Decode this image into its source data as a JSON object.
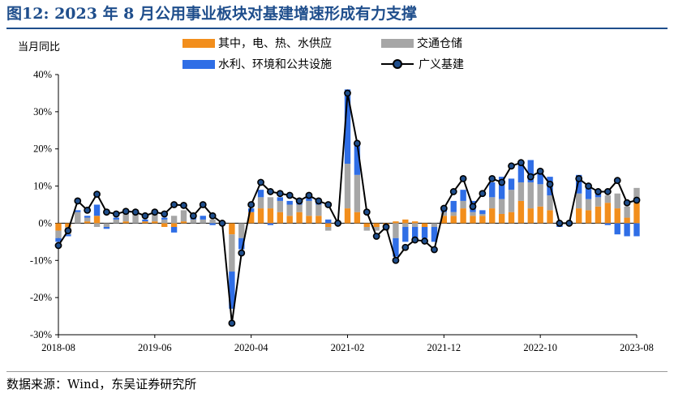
{
  "header": {
    "title": "图12:  2023 年 8 月公用事业板块对基建增速形成有力支撑"
  },
  "footer": {
    "source": "数据来源：Wind，东吴证券研究所"
  },
  "colors": {
    "utility": "#f28e1c",
    "transport": "#a6a6a6",
    "water": "#2f6ee6",
    "line": "#000000",
    "marker": "#1f4e8c"
  },
  "chart_data": {
    "type": "bar",
    "stacked": true,
    "ylabel": "当月同比",
    "ylim": [
      -30,
      40
    ],
    "yticks": [
      "40%",
      "30%",
      "20%",
      "10%",
      "0%",
      "-10%",
      "-20%",
      "-30%"
    ],
    "xticks": [
      "2018-08",
      "2019-06",
      "2020-04",
      "2021-02",
      "2021-12",
      "2022-10",
      "2023-08"
    ],
    "legend_position": "top",
    "legend": [
      "其中，电、热、水供应",
      "交通仓储",
      "水利、环境和公共设施",
      "广义基建"
    ],
    "x": [
      "2018-08",
      "2018-09",
      "2018-10",
      "2018-11",
      "2018-12",
      "2019-01",
      "2019-02",
      "2019-03",
      "2019-04",
      "2019-05",
      "2019-06",
      "2019-07",
      "2019-08",
      "2019-09",
      "2019-10",
      "2019-11",
      "2019-12",
      "2020-01",
      "2020-02",
      "2020-03",
      "2020-04",
      "2020-05",
      "2020-06",
      "2020-07",
      "2020-08",
      "2020-09",
      "2020-10",
      "2020-11",
      "2020-12",
      "2021-01",
      "2021-02",
      "2021-03",
      "2021-04",
      "2021-05",
      "2021-06",
      "2021-07",
      "2021-08",
      "2021-09",
      "2021-10",
      "2021-11",
      "2021-12",
      "2022-01",
      "2022-02",
      "2022-03",
      "2022-04",
      "2022-05",
      "2022-06",
      "2022-07",
      "2022-08",
      "2022-09",
      "2022-10",
      "2022-11",
      "2022-12",
      "2023-01",
      "2023-02",
      "2023-03",
      "2023-04",
      "2023-05",
      "2023-06",
      "2023-07",
      "2023-08"
    ],
    "series": [
      {
        "name": "其中，电、热、水供应",
        "kind": "bar",
        "values": [
          -2,
          -1,
          0,
          0.5,
          2,
          0,
          0,
          0.5,
          0,
          0.5,
          0.5,
          -1,
          -1,
          0.5,
          0,
          0,
          0,
          0,
          -3,
          0,
          3,
          4,
          4,
          3,
          2,
          3,
          2,
          2,
          -1,
          0,
          4,
          3,
          -1,
          -1,
          -1,
          0.5,
          1,
          0.5,
          -1,
          0,
          2,
          2,
          4,
          2,
          2,
          4,
          2.5,
          3,
          6,
          4,
          4.5,
          3.5,
          0,
          0,
          4,
          3.5,
          4.5,
          5.5,
          4,
          1.5,
          5.5
        ]
      },
      {
        "name": "交通仓储",
        "kind": "bar",
        "values": [
          -2,
          -2,
          3,
          1,
          -1,
          -1,
          1,
          2,
          3,
          0,
          2,
          1,
          2,
          3,
          1,
          1,
          1,
          0,
          -10,
          -4,
          0,
          3,
          3,
          3,
          3,
          2,
          4,
          3,
          -1,
          0,
          12,
          10,
          -1,
          -1,
          -1,
          -4,
          -1,
          -1,
          0,
          -1,
          1,
          1,
          2,
          1,
          0.5,
          3,
          4,
          6,
          5,
          7,
          6,
          4,
          0,
          0,
          4,
          3,
          2.5,
          2,
          4,
          3,
          4
        ]
      },
      {
        "name": "水利、环境和公共设施",
        "kind": "bar",
        "values": [
          -1,
          -0.5,
          0.5,
          0.5,
          3,
          -0.5,
          0.5,
          0.5,
          0,
          0.5,
          1,
          0.5,
          -1.5,
          0,
          1,
          1,
          -0.5,
          0,
          -10,
          -3,
          1,
          2,
          -0.5,
          1,
          1,
          1,
          2,
          1,
          1,
          0,
          20,
          8,
          0,
          0,
          0,
          -5,
          -4,
          -3,
          -3,
          -4,
          0.5,
          3,
          3,
          3,
          1,
          4,
          6,
          3,
          5,
          6,
          4,
          5,
          -1,
          0,
          5,
          4,
          1,
          -0.5,
          -3,
          -3.5,
          -3.5
        ]
      },
      {
        "name": "广义基建",
        "kind": "line",
        "values": [
          -6,
          -2,
          6,
          3.5,
          7.8,
          3,
          2.5,
          3.2,
          3,
          2,
          3,
          2.5,
          5,
          4.8,
          2,
          5,
          2,
          0,
          -26.9,
          -8,
          5,
          11,
          8.5,
          8,
          7.5,
          6,
          7.5,
          6,
          5,
          0,
          35,
          21.5,
          3,
          -3.5,
          -1,
          -10,
          -6.5,
          -4.5,
          -4.8,
          -7.1,
          4,
          8.5,
          12,
          4.5,
          8,
          12,
          11,
          15.4,
          16.3,
          12.5,
          14,
          10.5,
          0,
          0,
          12,
          10,
          8.5,
          8.5,
          11.5,
          5.5,
          6.2
        ]
      }
    ]
  }
}
